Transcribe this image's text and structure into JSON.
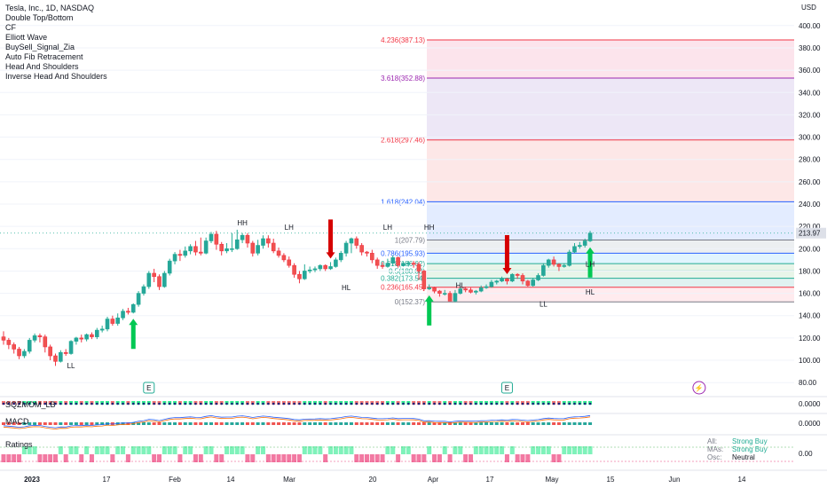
{
  "header": {
    "symbol": "Tesla, Inc., 1D, NASDAQ",
    "indicators": [
      "Double Top/Bottom",
      "CF",
      "Elliott Wave",
      "BuySell_Signal_Zia",
      "Auto Fib Retracement",
      "Head And Shoulders",
      "Inverse Head And Shoulders"
    ],
    "currency": "USD"
  },
  "chart_data": {
    "type": "candlestick",
    "price_axis": {
      "ticks": [
        80,
        100,
        120,
        140,
        160,
        180,
        200,
        220,
        240,
        260,
        280,
        300,
        320,
        340,
        360,
        380,
        400
      ],
      "range": [
        73,
        407
      ]
    },
    "time_axis": {
      "labels": [
        "2023",
        "17",
        "Feb",
        "14",
        "Mar",
        "20",
        "Apr",
        "17",
        "May",
        "15",
        "Jun",
        "14"
      ]
    },
    "last_price": "213.97",
    "colors": {
      "up": "#22ab94",
      "down": "#f23645",
      "fib_red": "#f23645",
      "fib_blue": "#2962ff",
      "fib_purple": "#9c27b0"
    },
    "candles": [
      [
        121,
        118,
        126,
        114
      ],
      [
        118,
        114,
        120,
        110
      ],
      [
        114,
        110,
        116,
        106
      ],
      [
        110,
        104,
        112,
        101
      ],
      [
        104,
        108,
        110,
        102
      ],
      [
        108,
        118,
        120,
        106
      ],
      [
        118,
        122,
        124,
        116
      ],
      [
        122,
        121,
        124,
        116
      ],
      [
        121,
        112,
        123,
        107
      ],
      [
        112,
        104,
        114,
        100
      ],
      [
        104,
        99,
        106,
        95
      ],
      [
        99,
        107,
        109,
        98
      ],
      [
        107,
        106,
        110,
        104
      ],
      [
        106,
        117,
        118,
        105
      ],
      [
        117,
        120,
        121,
        114
      ],
      [
        120,
        119,
        123,
        116
      ],
      [
        119,
        123,
        124,
        117
      ],
      [
        123,
        121,
        125,
        119
      ],
      [
        121,
        127,
        129,
        119
      ],
      [
        127,
        128,
        131,
        125
      ],
      [
        128,
        137,
        139,
        126
      ],
      [
        137,
        133,
        140,
        131
      ],
      [
        133,
        138,
        142,
        131
      ],
      [
        138,
        144,
        146,
        136
      ],
      [
        144,
        143,
        147,
        141
      ],
      [
        143,
        150,
        151,
        142
      ],
      [
        150,
        160,
        162,
        148
      ],
      [
        160,
        166,
        168,
        158
      ],
      [
        166,
        178,
        180,
        164
      ],
      [
        178,
        175,
        182,
        170
      ],
      [
        175,
        166,
        177,
        163
      ],
      [
        166,
        178,
        180,
        165
      ],
      [
        178,
        189,
        191,
        176
      ],
      [
        189,
        195,
        197,
        186
      ],
      [
        195,
        194,
        199,
        189
      ],
      [
        194,
        198,
        202,
        192
      ],
      [
        198,
        202,
        204,
        195
      ],
      [
        202,
        197,
        207,
        194
      ],
      [
        197,
        196,
        210,
        194
      ],
      [
        196,
        207,
        210,
        195
      ],
      [
        207,
        213,
        215,
        205
      ],
      [
        213,
        204,
        216,
        199
      ],
      [
        204,
        198,
        206,
        194
      ],
      [
        198,
        200,
        205,
        196
      ],
      [
        200,
        200,
        214,
        197
      ],
      [
        200,
        208,
        217,
        199
      ],
      [
        208,
        212,
        214,
        205
      ],
      [
        212,
        205,
        214,
        201
      ],
      [
        205,
        196,
        207,
        193
      ],
      [
        196,
        203,
        208,
        194
      ],
      [
        203,
        209,
        212,
        200
      ],
      [
        209,
        205,
        212,
        201
      ],
      [
        205,
        198,
        209,
        196
      ],
      [
        198,
        194,
        201,
        192
      ],
      [
        194,
        190,
        196,
        188
      ],
      [
        190,
        185,
        193,
        183
      ],
      [
        185,
        177,
        187,
        174
      ],
      [
        177,
        173,
        180,
        169
      ],
      [
        173,
        180,
        186,
        172
      ],
      [
        180,
        181,
        184,
        178
      ],
      [
        181,
        182,
        184,
        179
      ],
      [
        182,
        185,
        186,
        180
      ],
      [
        185,
        182,
        186,
        180
      ],
      [
        182,
        184,
        188,
        181
      ],
      [
        184,
        190,
        192,
        183
      ],
      [
        190,
        196,
        198,
        188
      ],
      [
        196,
        205,
        207,
        193
      ],
      [
        205,
        209,
        210,
        196
      ],
      [
        209,
        203,
        211,
        200
      ],
      [
        203,
        197,
        205,
        194
      ],
      [
        197,
        196,
        198,
        193
      ],
      [
        196,
        190,
        199,
        187
      ],
      [
        190,
        185,
        192,
        182
      ],
      [
        185,
        184,
        188,
        182
      ],
      [
        184,
        187,
        191,
        183
      ],
      [
        187,
        192,
        194,
        185
      ],
      [
        192,
        185,
        193,
        183
      ],
      [
        185,
        187,
        188,
        184
      ],
      [
        187,
        187,
        189,
        184
      ],
      [
        187,
        186,
        189,
        183
      ],
      [
        186,
        180,
        188,
        172
      ],
      [
        180,
        164,
        181,
        162
      ],
      [
        164,
        165,
        168,
        163
      ],
      [
        165,
        162,
        166,
        160
      ],
      [
        162,
        160,
        163,
        157
      ],
      [
        160,
        160,
        163,
        158
      ],
      [
        160,
        153,
        162,
        153
      ],
      [
        153,
        160,
        163,
        152
      ],
      [
        160,
        164,
        166,
        159
      ],
      [
        164,
        163,
        166,
        161
      ],
      [
        163,
        161,
        165,
        160
      ],
      [
        161,
        162,
        163,
        159
      ],
      [
        162,
        165,
        167,
        161
      ],
      [
        165,
        166,
        168,
        164
      ],
      [
        166,
        170,
        172,
        165
      ],
      [
        170,
        171,
        172,
        168
      ],
      [
        171,
        173,
        175,
        170
      ],
      [
        173,
        171,
        174,
        168
      ],
      [
        171,
        177,
        178,
        170
      ],
      [
        177,
        176,
        178,
        173
      ],
      [
        176,
        171,
        178,
        168
      ],
      [
        171,
        167,
        172,
        166
      ],
      [
        167,
        172,
        174,
        166
      ],
      [
        172,
        176,
        178,
        171
      ],
      [
        176,
        185,
        187,
        175
      ],
      [
        185,
        190,
        191,
        183
      ],
      [
        190,
        186,
        193,
        184
      ],
      [
        186,
        184,
        187,
        180
      ],
      [
        184,
        185,
        187,
        183
      ],
      [
        185,
        197,
        199,
        184
      ],
      [
        197,
        202,
        205,
        196
      ],
      [
        202,
        203,
        206,
        200
      ],
      [
        203,
        207,
        209,
        201
      ],
      [
        207,
        214,
        216,
        206
      ]
    ],
    "fib_levels": [
      {
        "label": "4.236(387.13)",
        "value": 387.13,
        "color": "#f23645"
      },
      {
        "label": "3.618(352.88)",
        "value": 352.88,
        "color": "#9c27b0"
      },
      {
        "label": "2.618(297.46)",
        "value": 297.46,
        "color": "#f23645"
      },
      {
        "label": "1.618(242.04)",
        "value": 242.04,
        "color": "#2962ff"
      },
      {
        "label": "1(207.79)",
        "value": 207.79,
        "color": "#787b86"
      },
      {
        "label": "0.786(195.93)",
        "value": 195.93,
        "color": "#2962ff"
      },
      {
        "label": "0.618(186.62)",
        "value": 186.62,
        "color": "#22ab94"
      },
      {
        "label": "0.5(180.08)",
        "value": 180.08,
        "color": "#22ab94"
      },
      {
        "label": "0.382(173.54)",
        "value": 173.54,
        "color": "#22ab94"
      },
      {
        "label": "0.236(165.45)",
        "value": 165.45,
        "color": "#f23645"
      },
      {
        "label": "0(152.37)",
        "value": 152.37,
        "color": "#787b86"
      }
    ],
    "pattern_labels": [
      {
        "text": "LL",
        "bar": 13,
        "price": 93,
        "color": "#f23645"
      },
      {
        "text": "HH",
        "bar": 46,
        "price": 221,
        "color": "#22ab94"
      },
      {
        "text": "LH",
        "bar": 55,
        "price": 217,
        "color": "#4a148c"
      },
      {
        "text": "HL",
        "bar": 66,
        "price": 163,
        "color": "#22ab94"
      },
      {
        "text": "LH",
        "bar": 74,
        "price": 217,
        "color": "#4a148c"
      },
      {
        "text": "HH",
        "bar": 82,
        "price": 217,
        "color": "#22ab94"
      },
      {
        "text": "HL",
        "bar": 88,
        "price": 165,
        "color": "#22ab94"
      },
      {
        "text": "LL",
        "bar": 104,
        "price": 148,
        "color": "#f23645"
      },
      {
        "text": "LH",
        "bar": 117,
        "price": 184,
        "color": "#4a148c"
      },
      {
        "text": "HL",
        "bar": 119,
        "price": 159,
        "color": "#22ab94"
      }
    ],
    "signals": [
      {
        "type": "buy",
        "bar": 25
      },
      {
        "type": "sell",
        "bar": 63
      },
      {
        "type": "buy",
        "bar": 82
      },
      {
        "type": "sell",
        "bar": 97
      },
      {
        "type": "buy",
        "bar": 122
      }
    ],
    "events": [
      {
        "text": "E",
        "bar": 28
      },
      {
        "text": "E",
        "bar": 97
      },
      {
        "text": "⚡",
        "bar": 134
      }
    ],
    "panes": {
      "sqzmom": {
        "title": "SQZMOM_LB",
        "value": "0.0000"
      },
      "macd": {
        "title": "MACD",
        "value": "0.0000"
      },
      "ratings": {
        "title": "Ratings",
        "value": "0.00",
        "rows": [
          {
            "key": "All:",
            "value": "Strong Buy"
          },
          {
            "key": "MAs:",
            "value": "Strong Buy"
          },
          {
            "key": "Osc:",
            "value": "Neutral"
          }
        ]
      }
    }
  }
}
